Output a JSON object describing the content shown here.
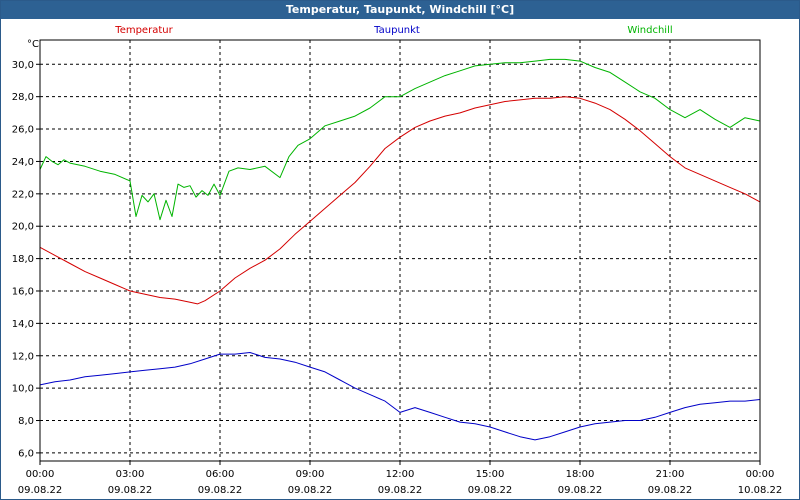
{
  "window": {
    "title": "Temperatur, Taupunkt, Windchill [°C]"
  },
  "colors": {
    "temperatur": "#d40000",
    "taupunkt": "#0000c8",
    "windchill": "#00b400",
    "grid": "#000000",
    "titlebar": "#2d6193"
  },
  "chart_data": {
    "type": "line",
    "title": "Temperatur, Taupunkt, Windchill [°C]",
    "ylabel": "°C",
    "xlabel": "",
    "ylim": [
      5.5,
      31.5
    ],
    "xlim": [
      0,
      24
    ],
    "grid": true,
    "yticks": [
      6,
      8,
      10,
      12,
      14,
      16,
      18,
      20,
      22,
      24,
      26,
      28,
      30
    ],
    "ytick_labels": [
      "6,0",
      "8,0",
      "10,0",
      "12,0",
      "14,0",
      "16,0",
      "18,0",
      "20,0",
      "22,0",
      "24,0",
      "26,0",
      "28,0",
      "30,0"
    ],
    "xticks": [
      {
        "x": 0,
        "time": "00:00",
        "date": "09.08.22"
      },
      {
        "x": 3,
        "time": "03:00",
        "date": "09.08.22"
      },
      {
        "x": 6,
        "time": "06:00",
        "date": "09.08.22"
      },
      {
        "x": 9,
        "time": "09:00",
        "date": "09.08.22"
      },
      {
        "x": 12,
        "time": "12:00",
        "date": "09.08.22"
      },
      {
        "x": 15,
        "time": "15:00",
        "date": "09.08.22"
      },
      {
        "x": 18,
        "time": "18:00",
        "date": "09.08.22"
      },
      {
        "x": 21,
        "time": "21:00",
        "date": "09.08.22"
      },
      {
        "x": 24,
        "time": "00:00",
        "date": "10.08.22"
      }
    ],
    "legend": [
      "Temperatur",
      "Taupunkt",
      "Windchill"
    ],
    "series": [
      {
        "name": "Temperatur",
        "colorKey": "temperatur",
        "x": [
          0,
          0.5,
          1,
          1.5,
          2,
          2.5,
          3,
          3.5,
          4,
          4.5,
          5,
          5.25,
          5.5,
          6,
          6.5,
          7,
          7.5,
          8,
          8.5,
          9,
          9.5,
          10,
          10.5,
          11,
          11.5,
          12,
          12.5,
          13,
          13.5,
          14,
          14.5,
          15,
          15.5,
          16,
          16.5,
          17,
          17.5,
          18,
          18.5,
          19,
          19.5,
          20,
          20.5,
          21,
          21.5,
          22,
          22.5,
          23,
          23.5,
          24
        ],
        "values": [
          18.7,
          18.2,
          17.7,
          17.2,
          16.8,
          16.4,
          16.0,
          15.8,
          15.6,
          15.5,
          15.3,
          15.2,
          15.4,
          16.0,
          16.8,
          17.4,
          17.9,
          18.6,
          19.5,
          20.3,
          21.1,
          21.9,
          22.7,
          23.7,
          24.8,
          25.5,
          26.1,
          26.5,
          26.8,
          27.0,
          27.3,
          27.5,
          27.7,
          27.8,
          27.9,
          27.9,
          28.0,
          27.9,
          27.6,
          27.2,
          26.6,
          25.9,
          25.1,
          24.3,
          23.6,
          23.2,
          22.8,
          22.4,
          22.0,
          21.5
        ]
      },
      {
        "name": "Taupunkt",
        "colorKey": "taupunkt",
        "x": [
          0,
          0.5,
          1,
          1.5,
          2,
          2.5,
          3,
          3.5,
          4,
          4.5,
          5,
          5.5,
          6,
          6.5,
          7,
          7.5,
          8,
          8.5,
          9,
          9.5,
          10,
          10.5,
          11,
          11.5,
          12,
          12.5,
          13,
          13.5,
          14,
          14.5,
          15,
          15.5,
          16,
          16.5,
          17,
          17.5,
          18,
          18.5,
          19,
          19.5,
          20,
          20.5,
          21,
          21.5,
          22,
          22.5,
          23,
          23.5,
          24
        ],
        "values": [
          10.2,
          10.4,
          10.5,
          10.7,
          10.8,
          10.9,
          11.0,
          11.1,
          11.2,
          11.3,
          11.5,
          11.8,
          12.1,
          12.1,
          12.2,
          11.9,
          11.8,
          11.6,
          11.3,
          11.0,
          10.5,
          10.0,
          9.6,
          9.2,
          8.5,
          8.8,
          8.5,
          8.2,
          7.9,
          7.8,
          7.6,
          7.3,
          7.0,
          6.8,
          7.0,
          7.3,
          7.6,
          7.8,
          7.9,
          8.0,
          8.0,
          8.2,
          8.5,
          8.8,
          9.0,
          9.1,
          9.2,
          9.2,
          9.3
        ]
      },
      {
        "name": "Windchill",
        "colorKey": "windchill",
        "x": [
          0,
          0.2,
          0.4,
          0.6,
          0.8,
          1,
          1.5,
          2,
          2.5,
          3,
          3.2,
          3.4,
          3.6,
          3.8,
          4,
          4.2,
          4.4,
          4.6,
          4.8,
          5,
          5.2,
          5.4,
          5.6,
          5.8,
          6,
          6.3,
          6.6,
          7,
          7.5,
          8,
          8.3,
          8.6,
          9,
          9.5,
          10,
          10.5,
          11,
          11.5,
          12,
          12.5,
          13,
          13.5,
          14,
          14.5,
          15,
          15.5,
          16,
          16.5,
          17,
          17.5,
          18,
          18.5,
          19,
          19.5,
          20,
          20.5,
          21,
          21.5,
          22,
          22.5,
          23,
          23.5,
          24
        ],
        "values": [
          23.5,
          24.3,
          24.0,
          23.8,
          24.1,
          23.9,
          23.7,
          23.4,
          23.2,
          22.8,
          20.6,
          21.9,
          21.5,
          22.0,
          20.4,
          21.6,
          20.6,
          22.6,
          22.4,
          22.5,
          21.8,
          22.2,
          21.9,
          22.6,
          21.9,
          23.4,
          23.6,
          23.5,
          23.7,
          23.0,
          24.3,
          25.0,
          25.4,
          26.2,
          26.5,
          26.8,
          27.3,
          28.0,
          28.0,
          28.5,
          28.9,
          29.3,
          29.6,
          29.9,
          30.0,
          30.1,
          30.1,
          30.2,
          30.3,
          30.3,
          30.2,
          29.8,
          29.5,
          28.9,
          28.3,
          27.9,
          27.2,
          26.7,
          27.2,
          26.6,
          26.1,
          26.7,
          26.5
        ]
      }
    ]
  }
}
